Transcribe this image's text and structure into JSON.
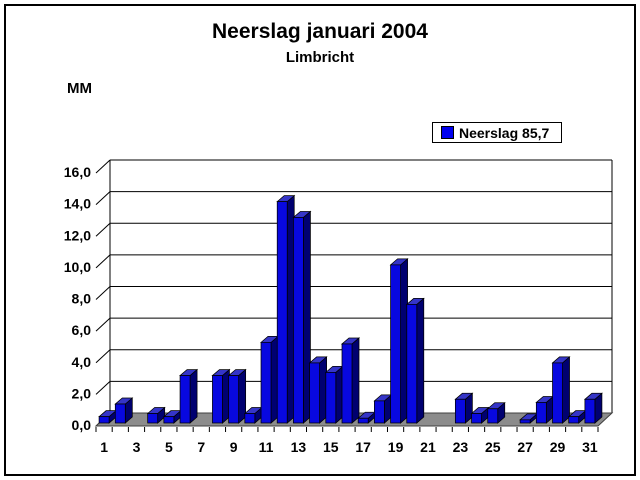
{
  "chart": {
    "title": "Neerslag januari 2004",
    "subtitle": "Limbricht",
    "y_axis_unit": "MM",
    "legend": {
      "label": "Neerslag 85,7",
      "swatch_color": "#0000EE"
    }
  },
  "chart_data": {
    "type": "bar",
    "style": "3d-column",
    "title": "Neerslag januari 2004",
    "subtitle": "Limbricht",
    "xlabel": "",
    "ylabel": "MM",
    "series_name": "Neerslag",
    "series_total_label": "85,7",
    "x": [
      1,
      2,
      3,
      4,
      5,
      6,
      7,
      8,
      9,
      10,
      11,
      12,
      13,
      14,
      15,
      16,
      17,
      18,
      19,
      20,
      21,
      22,
      23,
      24,
      25,
      26,
      27,
      28,
      29,
      30,
      31
    ],
    "values": [
      0.4,
      1.2,
      0,
      0.6,
      0.4,
      3.0,
      0,
      3.0,
      3.0,
      0.6,
      5.1,
      14.0,
      13.0,
      3.8,
      3.2,
      5.0,
      0.3,
      1.4,
      10.0,
      7.5,
      0,
      0,
      1.5,
      0.6,
      0.9,
      0,
      0.2,
      1.3,
      3.8,
      0.4,
      1.5
    ],
    "ylim": [
      0,
      16
    ],
    "ytick_step": 2,
    "ytick_labels": [
      "0,0",
      "2,0",
      "4,0",
      "6,0",
      "8,0",
      "10,0",
      "12,0",
      "14,0",
      "16,0"
    ],
    "xtick_labels_shown": [
      "1",
      "3",
      "5",
      "7",
      "9",
      "11",
      "13",
      "15",
      "17",
      "19",
      "21",
      "23",
      "25",
      "27",
      "29",
      "31"
    ],
    "grid": true,
    "legend_position": "top-right",
    "colors": {
      "bar_front": "#0808E0",
      "bar_top": "#3535C8",
      "bar_side": "#000070",
      "floor": "#8C8C8C",
      "line": "#000000",
      "background": "#FFFFFF"
    }
  }
}
